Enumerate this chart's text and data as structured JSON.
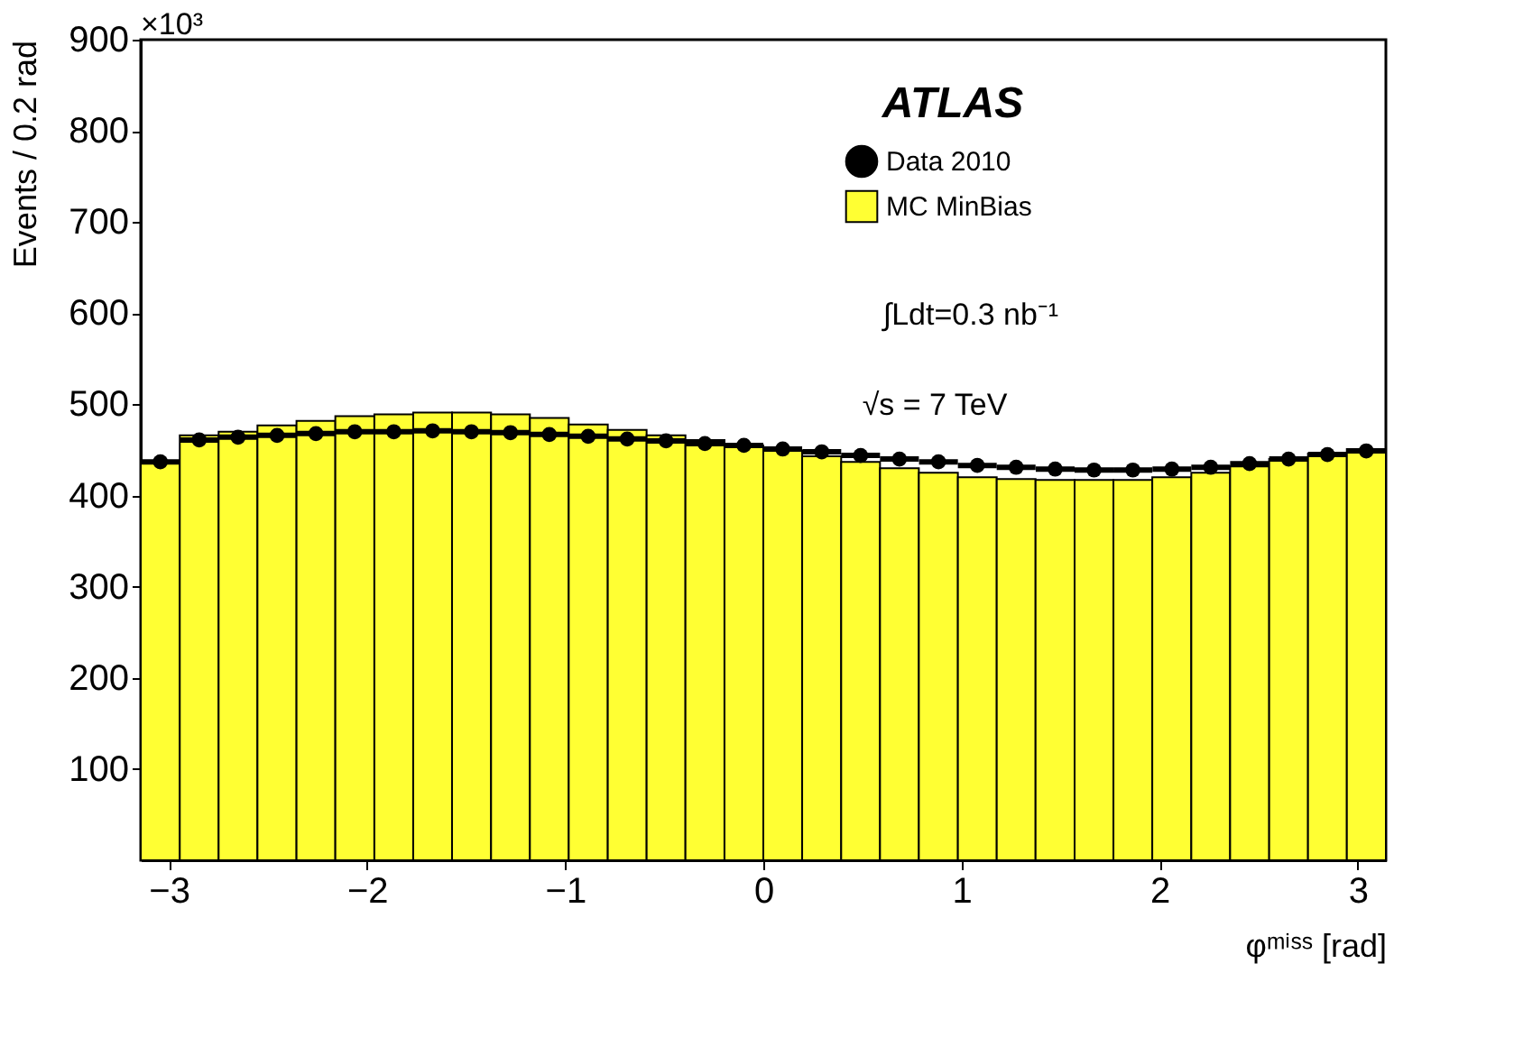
{
  "chart_data": {
    "type": "histogram",
    "xlabel": "φᵐⁱˢˢ [rad]",
    "ylabel": "Events / 0.2 rad",
    "annotations": [
      "×10³",
      "ATLAS",
      "∫Ldt=0.3 nb⁻¹",
      "√s = 7 TeV"
    ],
    "bins": [
      -3.142,
      -2.945,
      -2.749,
      -2.553,
      -2.356,
      -2.16,
      -1.963,
      -1.767,
      -1.571,
      -1.374,
      -1.178,
      -0.982,
      -0.785,
      -0.589,
      -0.393,
      -0.196,
      0,
      0.196,
      0.393,
      0.589,
      0.785,
      0.982,
      1.178,
      1.374,
      1.571,
      1.767,
      1.963,
      2.16,
      2.356,
      2.553,
      2.749,
      2.945,
      3.142
    ],
    "series": [
      {
        "name": "Data 2010",
        "type": "scatter",
        "color": "#000000",
        "x": [
          -3.043,
          -2.847,
          -2.651,
          -2.454,
          -2.258,
          -2.062,
          -1.865,
          -1.669,
          -1.473,
          -1.276,
          -1.08,
          -0.884,
          -0.687,
          -0.491,
          -0.295,
          -0.098,
          0.098,
          0.295,
          0.491,
          0.687,
          0.884,
          1.08,
          1.276,
          1.473,
          1.669,
          1.865,
          2.062,
          2.258,
          2.454,
          2.651,
          2.847,
          3.043
        ],
        "values": [
          437,
          461,
          464,
          466,
          468,
          470,
          470,
          471,
          470,
          469,
          467,
          465,
          462,
          460,
          457,
          455,
          451,
          448,
          444,
          440,
          437,
          433,
          431,
          429,
          428,
          428,
          429,
          431,
          435,
          440,
          445,
          449
        ],
        "xerrors": [
          0.098,
          0.098,
          0.098,
          0.098,
          0.098,
          0.098,
          0.098,
          0.098,
          0.098,
          0.098,
          0.098,
          0.098,
          0.098,
          0.098,
          0.098,
          0.098,
          0.098,
          0.098,
          0.098,
          0.098,
          0.098,
          0.098,
          0.098,
          0.098,
          0.098,
          0.098,
          0.098,
          0.098,
          0.098,
          0.098,
          0.098,
          0.098
        ]
      },
      {
        "name": "MC MinBias",
        "color": "#ffff33",
        "values": [
          437,
          466,
          470,
          477,
          482,
          487,
          489,
          491,
          491,
          489,
          485,
          478,
          472,
          466,
          461,
          455,
          449,
          443,
          437,
          430,
          425,
          420,
          418,
          417,
          417,
          417,
          420,
          425,
          432,
          440,
          446,
          451
        ]
      }
    ],
    "xlim": [
      -3.142,
      3.142
    ],
    "ylim": [
      0,
      900
    ],
    "xticks": [
      -3,
      -2,
      -1,
      0,
      1,
      2,
      3
    ],
    "yticks": [
      100,
      200,
      300,
      400,
      500,
      600,
      700,
      800,
      900
    ],
    "grid": false,
    "legend": "top right",
    "marker": "circle"
  }
}
